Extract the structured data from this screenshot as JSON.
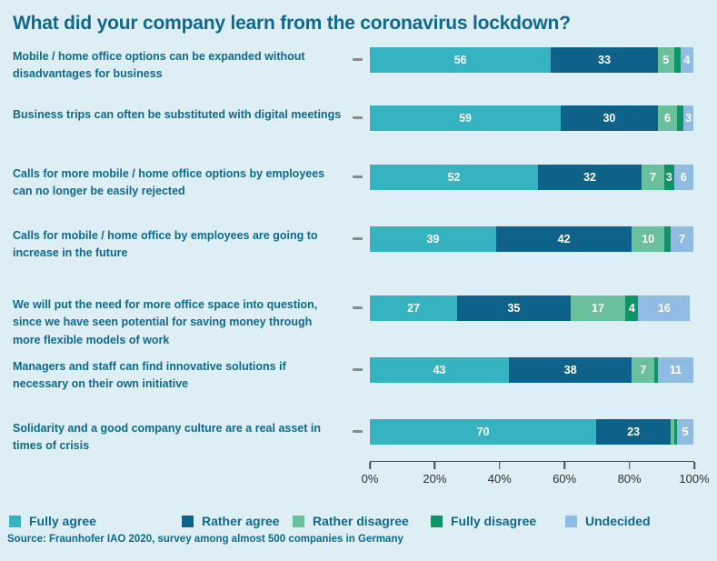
{
  "title": "What did your company learn from the coronavirus lockdown?",
  "source": "Source: Fraunhofer IAO 2020, survey among almost 500 companies in Germany",
  "colors": {
    "background": "#ddeef5",
    "text_ink": "#0d6a8e",
    "fully_agree": "#35b3c0",
    "rather_agree": "#0e6189",
    "rather_disagree": "#6ac09c",
    "fully_disagree": "#0f9468",
    "undecided": "#90bce4",
    "axis": "#4a4a4a"
  },
  "chart_data": {
    "type": "bar",
    "stacked": true,
    "orientation": "horizontal",
    "title": "What did your company learn from the coronavirus lockdown?",
    "categories": [
      "Mobile / home office options can be expanded without disadvantages for business",
      "Business trips can often be substituted with digital meetings",
      "Calls for more mobile / home office options by employees can no longer be easily rejected",
      "Calls for mobile / home office by employees are going to increase in the future",
      "We will put the need for more office space into question, since we have seen potential for saving money through more flexible models of work",
      "Managers and staff can find innovative solutions if necessary on their own initiative",
      "Solidarity and a good company culture are a real asset in times of crisis"
    ],
    "series": [
      {
        "name": "Fully agree",
        "color": "#35b3c0",
        "values": [
          56,
          59,
          52,
          39,
          27,
          43,
          70
        ]
      },
      {
        "name": "Rather agree",
        "color": "#0e6189",
        "values": [
          33,
          30,
          32,
          42,
          35,
          38,
          23
        ]
      },
      {
        "name": "Rather disagree",
        "color": "#6ac09c",
        "values": [
          5,
          6,
          7,
          10,
          17,
          7,
          1
        ]
      },
      {
        "name": "Fully disagree",
        "color": "#0f9468",
        "values": [
          2,
          2,
          3,
          2,
          4,
          1,
          1
        ]
      },
      {
        "name": "Undecided",
        "color": "#90bce4",
        "values": [
          4,
          3,
          6,
          7,
          16,
          11,
          5
        ]
      }
    ],
    "x_ticks": [
      "0%",
      "20%",
      "40%",
      "60%",
      "80%",
      "100%"
    ],
    "xlim": [
      0,
      100
    ],
    "value_label_min_show": 3,
    "legend_position": "bottom",
    "grid": false
  }
}
